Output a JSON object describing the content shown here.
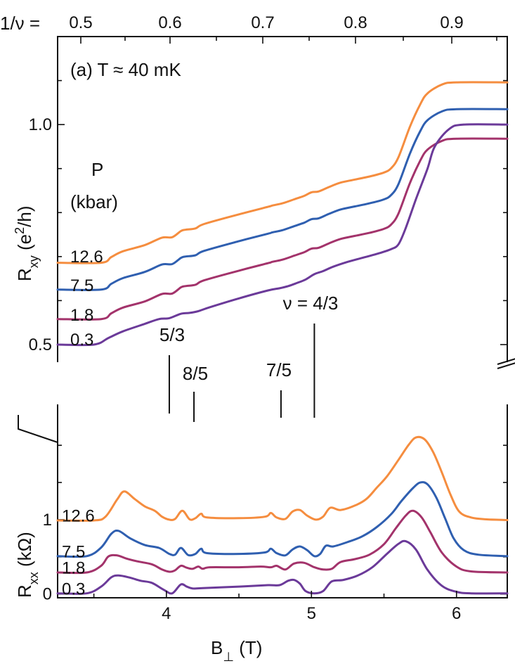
{
  "chart_data": {
    "type": "line",
    "panel_label": "(a) T ≈ 40 mK",
    "top_axis": {
      "label": "1/ν =",
      "ticks": [
        "0.5",
        "0.6",
        "0.7",
        "0.8",
        "0.9"
      ]
    },
    "xlabel": "B⊥ (T)",
    "x_ticks": [
      "4",
      "5",
      "6"
    ],
    "xlim": [
      3.25,
      6.35
    ],
    "legend_title": [
      "P",
      "(kbar)"
    ],
    "colors": {
      "12.6": "#f58d3f",
      "7.5": "#2f5fb0",
      "1.8": "#a3336b",
      "0.3": "#6b3a99"
    },
    "upper": {
      "ylabel": "R_xy (e²/h)",
      "y_ticks": [
        "0.5",
        "1.0"
      ],
      "ylim": [
        0.46,
        1.2
      ],
      "offset_series_labels": [
        "12.6",
        "7.5",
        "1.8",
        "0.3"
      ],
      "series": [
        {
          "name": "12.6",
          "offset": 0.186,
          "x": [
            3.25,
            3.55,
            3.62,
            3.7,
            3.85,
            3.97,
            4.04,
            4.1,
            4.13,
            4.2,
            4.26,
            4.5,
            4.7,
            4.73,
            4.8,
            4.88,
            4.95,
            5.0,
            5.05,
            5.12,
            5.2,
            5.3,
            5.4,
            5.5,
            5.55,
            5.6,
            5.68,
            5.75,
            5.8,
            5.9,
            6.0,
            6.35
          ],
          "y": [
            0.59,
            0.59,
            0.603,
            0.616,
            0.63,
            0.647,
            0.648,
            0.662,
            0.665,
            0.668,
            0.678,
            0.7,
            0.717,
            0.72,
            0.725,
            0.734,
            0.742,
            0.75,
            0.752,
            0.762,
            0.772,
            0.779,
            0.786,
            0.795,
            0.805,
            0.83,
            0.9,
            0.95,
            0.975,
            0.995,
            1.0,
            1.0
          ]
        },
        {
          "name": "7.5",
          "offset": 0.125,
          "x": [
            3.25,
            3.55,
            3.62,
            3.7,
            3.85,
            3.97,
            4.04,
            4.1,
            4.13,
            4.2,
            4.26,
            4.5,
            4.7,
            4.73,
            4.8,
            4.88,
            4.95,
            5.0,
            5.05,
            5.12,
            5.2,
            5.3,
            5.4,
            5.5,
            5.55,
            5.6,
            5.68,
            5.75,
            5.8,
            5.9,
            6.0,
            6.35
          ],
          "y": [
            0.59,
            0.59,
            0.603,
            0.616,
            0.63,
            0.647,
            0.648,
            0.662,
            0.665,
            0.668,
            0.678,
            0.7,
            0.717,
            0.72,
            0.725,
            0.734,
            0.742,
            0.75,
            0.752,
            0.762,
            0.772,
            0.779,
            0.786,
            0.795,
            0.805,
            0.83,
            0.9,
            0.95,
            0.975,
            0.995,
            1.0,
            1.0
          ]
        },
        {
          "name": "1.8",
          "offset": 0.058,
          "x": [
            3.25,
            3.55,
            3.62,
            3.7,
            3.85,
            3.97,
            4.04,
            4.1,
            4.13,
            4.2,
            4.26,
            4.5,
            4.7,
            4.73,
            4.8,
            4.88,
            4.95,
            5.0,
            5.05,
            5.12,
            5.2,
            5.3,
            5.4,
            5.5,
            5.55,
            5.6,
            5.68,
            5.75,
            5.8,
            5.9,
            6.0,
            6.35
          ],
          "y": [
            0.59,
            0.59,
            0.603,
            0.616,
            0.63,
            0.647,
            0.648,
            0.662,
            0.665,
            0.668,
            0.678,
            0.7,
            0.717,
            0.72,
            0.725,
            0.734,
            0.742,
            0.75,
            0.752,
            0.762,
            0.772,
            0.779,
            0.786,
            0.795,
            0.805,
            0.83,
            0.9,
            0.95,
            0.975,
            0.995,
            1.0,
            1.0
          ]
        },
        {
          "name": "0.3",
          "offset": 0.0,
          "x": [
            3.25,
            3.5,
            3.6,
            3.7,
            3.85,
            3.95,
            4.02,
            4.1,
            4.16,
            4.22,
            4.3,
            4.5,
            4.7,
            4.78,
            4.84,
            4.9,
            4.96,
            5.02,
            5.08,
            5.15,
            5.25,
            5.35,
            5.45,
            5.55,
            5.6,
            5.65,
            5.72,
            5.8,
            5.85,
            5.95,
            6.05,
            6.35
          ],
          "y": [
            0.5,
            0.5,
            0.515,
            0.53,
            0.547,
            0.558,
            0.56,
            0.57,
            0.572,
            0.576,
            0.585,
            0.605,
            0.623,
            0.628,
            0.633,
            0.64,
            0.648,
            0.66,
            0.667,
            0.677,
            0.688,
            0.697,
            0.706,
            0.717,
            0.728,
            0.765,
            0.83,
            0.9,
            0.95,
            0.99,
            1.0,
            1.0
          ]
        }
      ]
    },
    "lower": {
      "ylabel": "R_xx (kΩ)",
      "y_ticks": [
        "0",
        "1"
      ],
      "ylim": [
        -0.05,
        2.55
      ],
      "offset_series_labels": [
        "12.6",
        "7.5",
        "1.8",
        "0.3"
      ],
      "annotations": [
        {
          "text": "5/3",
          "x": 4.02
        },
        {
          "text": "8/5",
          "x": 4.19
        },
        {
          "text": "7/5",
          "x": 4.79
        },
        {
          "text": "ν = 4/3",
          "x": 5.02
        }
      ],
      "series": [
        {
          "name": "12.6",
          "offset": 0.98,
          "x": [
            3.25,
            3.5,
            3.58,
            3.66,
            3.71,
            3.78,
            3.85,
            3.92,
            3.97,
            4.02,
            4.06,
            4.11,
            4.16,
            4.2,
            4.24,
            4.28,
            4.5,
            4.68,
            4.72,
            4.76,
            4.82,
            4.87,
            4.92,
            4.97,
            5.03,
            5.08,
            5.13,
            5.2,
            5.3,
            5.38,
            5.45,
            5.52,
            5.6,
            5.67,
            5.72,
            5.78,
            5.84,
            5.9,
            5.96,
            6.02,
            6.1,
            6.2,
            6.35
          ],
          "y": [
            0.02,
            0.02,
            0.12,
            0.58,
            0.8,
            0.6,
            0.4,
            0.28,
            0.12,
            0.04,
            0.06,
            0.28,
            0.05,
            0.08,
            0.2,
            0.1,
            0.08,
            0.12,
            0.22,
            0.1,
            0.06,
            0.26,
            0.3,
            0.15,
            0.04,
            0.12,
            0.36,
            0.3,
            0.42,
            0.6,
            0.9,
            1.2,
            1.65,
            2.05,
            2.25,
            2.2,
            1.85,
            1.3,
            0.7,
            0.25,
            0.1,
            0.05,
            0.03
          ]
        },
        {
          "name": "7.5",
          "offset": 0.5,
          "x": [
            3.25,
            3.45,
            3.55,
            3.62,
            3.67,
            3.75,
            3.85,
            3.95,
            4.02,
            4.06,
            4.1,
            4.15,
            4.2,
            4.24,
            4.28,
            4.5,
            4.68,
            4.72,
            4.76,
            4.82,
            4.87,
            4.92,
            4.97,
            5.02,
            5.06,
            5.1,
            5.15,
            5.25,
            5.35,
            5.45,
            5.55,
            5.62,
            5.7,
            5.75,
            5.8,
            5.86,
            5.92,
            5.98,
            6.05,
            6.15,
            6.35
          ],
          "y": [
            0.02,
            0.02,
            0.25,
            0.62,
            0.7,
            0.5,
            0.32,
            0.24,
            0.08,
            0.06,
            0.24,
            0.05,
            0.08,
            0.22,
            0.1,
            0.08,
            0.12,
            0.22,
            0.1,
            0.04,
            0.2,
            0.28,
            0.18,
            0.02,
            0.08,
            0.3,
            0.28,
            0.4,
            0.55,
            0.8,
            1.15,
            1.5,
            1.85,
            2.0,
            1.95,
            1.6,
            1.05,
            0.5,
            0.18,
            0.06,
            0.02
          ]
        },
        {
          "name": "1.8",
          "offset": 0.28,
          "x": [
            3.25,
            3.45,
            3.55,
            3.6,
            3.66,
            3.72,
            3.8,
            3.9,
            3.97,
            4.02,
            4.06,
            4.1,
            4.14,
            4.18,
            4.22,
            4.25,
            4.3,
            4.5,
            4.65,
            4.72,
            4.76,
            4.82,
            4.88,
            4.95,
            5.02,
            5.08,
            5.14,
            5.2,
            5.3,
            5.4,
            5.5,
            5.58,
            5.65,
            5.7,
            5.76,
            5.82,
            5.9,
            6.0,
            6.1,
            6.35
          ],
          "y": [
            0.02,
            0.02,
            0.2,
            0.45,
            0.48,
            0.4,
            0.32,
            0.24,
            0.1,
            0.04,
            0.08,
            0.2,
            0.15,
            0.12,
            0.18,
            0.12,
            0.16,
            0.16,
            0.18,
            0.16,
            0.2,
            0.1,
            0.26,
            0.28,
            0.16,
            0.1,
            0.12,
            0.3,
            0.38,
            0.5,
            0.78,
            1.2,
            1.55,
            1.68,
            1.5,
            1.1,
            0.55,
            0.18,
            0.05,
            0.02
          ]
        },
        {
          "name": "0.3",
          "offset": 0.0,
          "x": [
            3.25,
            3.45,
            3.55,
            3.62,
            3.67,
            3.75,
            3.82,
            3.9,
            3.98,
            4.04,
            4.1,
            4.14,
            4.18,
            4.25,
            4.5,
            4.7,
            4.78,
            4.84,
            4.88,
            4.92,
            4.96,
            5.02,
            5.08,
            5.14,
            5.22,
            5.32,
            5.42,
            5.52,
            5.6,
            5.65,
            5.72,
            5.8,
            5.9,
            6.0,
            6.1,
            6.35
          ],
          "y": [
            0.02,
            0.02,
            0.2,
            0.45,
            0.5,
            0.44,
            0.36,
            0.3,
            0.12,
            0.02,
            0.26,
            0.2,
            0.15,
            0.16,
            0.2,
            0.24,
            0.24,
            0.36,
            0.38,
            0.28,
            0.08,
            0.02,
            0.08,
            0.34,
            0.38,
            0.5,
            0.72,
            1.08,
            1.35,
            1.42,
            1.2,
            0.65,
            0.22,
            0.06,
            0.02,
            0.02
          ]
        }
      ]
    }
  }
}
